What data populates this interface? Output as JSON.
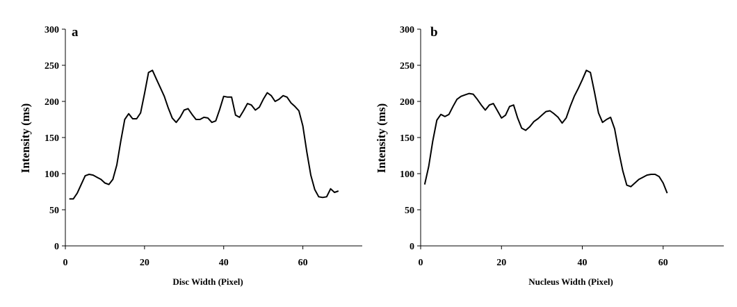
{
  "chart_data": [
    {
      "type": "line",
      "panel_label": "a",
      "xlabel": "Disc Width (Pixel)",
      "ylabel": "Intensity (ms)",
      "xlim": [
        0,
        75
      ],
      "ylim": [
        0,
        300
      ],
      "xticks": [
        0,
        20,
        40,
        60
      ],
      "yticks": [
        0,
        50,
        100,
        150,
        200,
        250,
        300
      ],
      "grid": false,
      "line_color": "#000000",
      "series": [
        {
          "x": [
            1,
            2,
            3,
            4,
            5,
            6,
            7,
            8,
            9,
            10,
            11,
            12,
            13,
            14,
            15,
            16,
            17,
            18,
            19,
            20,
            21,
            22,
            23,
            24,
            25,
            26,
            27,
            28,
            29,
            30,
            31,
            32,
            33,
            34,
            35,
            36,
            37,
            38,
            39,
            40,
            41,
            42,
            43,
            44,
            45,
            46,
            47,
            48,
            49,
            50,
            51,
            52,
            53,
            54,
            55,
            56,
            57,
            58,
            59,
            60,
            61,
            62,
            63,
            64,
            65,
            66,
            67,
            68,
            69
          ],
          "values": [
            65,
            65,
            73,
            85,
            97,
            99,
            98,
            95,
            92,
            87,
            85,
            92,
            112,
            145,
            175,
            183,
            176,
            176,
            184,
            211,
            240,
            243,
            231,
            219,
            207,
            191,
            177,
            171,
            178,
            188,
            190,
            182,
            175,
            175,
            178,
            177,
            171,
            173,
            189,
            207,
            206,
            206,
            181,
            178,
            187,
            197,
            195,
            188,
            192,
            203,
            212,
            208,
            200,
            203,
            208,
            206,
            198,
            193,
            187,
            166,
            130,
            98,
            78,
            68,
            67,
            68,
            79,
            74,
            76
          ]
        }
      ]
    },
    {
      "type": "line",
      "panel_label": "b",
      "xlabel": "Nucleus Width (Pixel)",
      "ylabel": "Intensity (ms)",
      "xlim": [
        0,
        75
      ],
      "ylim": [
        0,
        300
      ],
      "xticks": [
        0,
        20,
        40,
        60
      ],
      "yticks": [
        0,
        50,
        100,
        150,
        200,
        250,
        300
      ],
      "grid": false,
      "line_color": "#000000",
      "series": [
        {
          "x": [
            1,
            2,
            3,
            4,
            5,
            6,
            7,
            8,
            9,
            10,
            11,
            12,
            13,
            14,
            15,
            16,
            17,
            18,
            19,
            20,
            21,
            22,
            23,
            24,
            25,
            26,
            27,
            28,
            29,
            30,
            31,
            32,
            33,
            34,
            35,
            36,
            37,
            38,
            39,
            40,
            41,
            42,
            43,
            44,
            45,
            46,
            47,
            48,
            49,
            50,
            51,
            52,
            53,
            54,
            55,
            56,
            57,
            58,
            59,
            60,
            61
          ],
          "values": [
            85,
            110,
            145,
            174,
            182,
            179,
            182,
            193,
            203,
            207,
            209,
            211,
            210,
            203,
            195,
            188,
            195,
            197,
            187,
            177,
            181,
            193,
            195,
            177,
            163,
            160,
            165,
            172,
            176,
            181,
            186,
            187,
            183,
            178,
            170,
            177,
            193,
            207,
            218,
            230,
            243,
            240,
            213,
            184,
            171,
            175,
            178,
            162,
            131,
            104,
            84,
            82,
            87,
            92,
            95,
            98,
            99,
            99,
            96,
            87,
            73
          ]
        }
      ]
    }
  ]
}
